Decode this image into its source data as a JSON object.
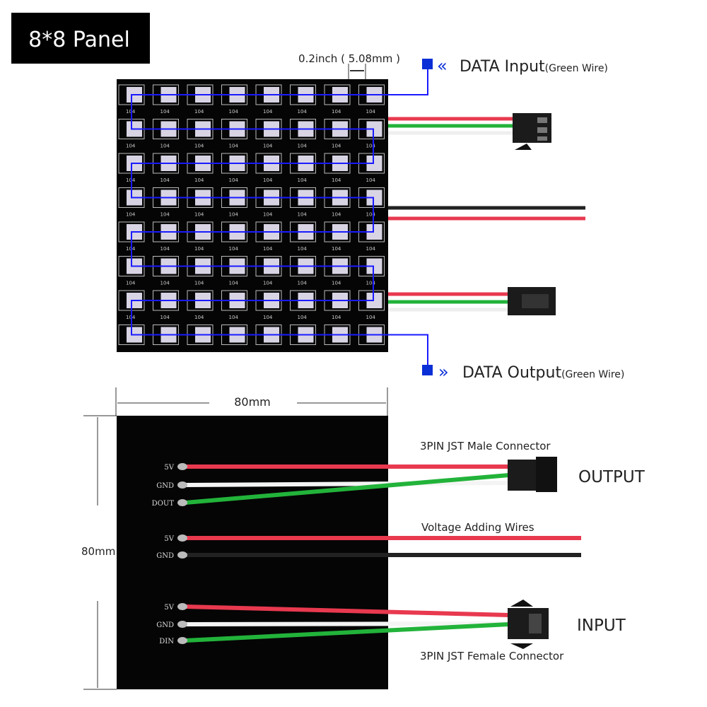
{
  "title_badge": "8*8 Panel",
  "top_view": {
    "pitch_label": "0.2inch ( 5.08mm )",
    "data_input_label": "DATA Input",
    "data_input_note": "(Green Wire)",
    "data_output_label": "DATA Output",
    "data_output_note": "(Green Wire)",
    "led_rows": 8,
    "led_cols": 8,
    "resistor_label": "104"
  },
  "bottom_view": {
    "width_label": "80mm",
    "height_label": "80mm",
    "male_connector_label": "3PIN JST Male Connector",
    "output_label": "OUTPUT",
    "voltage_label": "Voltage Adding Wires",
    "input_label": "INPUT",
    "female_connector_label": "3PIN JST Female Connector",
    "output_pins": [
      "5V",
      "GND",
      "DOUT"
    ],
    "power_pins": [
      "5V",
      "GND"
    ],
    "input_pins": [
      "5V",
      "GND",
      "DIN"
    ]
  },
  "colors": {
    "red_wire": "#e8394f",
    "green_wire": "#22b33a",
    "white_wire": "#f4f4f4",
    "black_wire": "#222222",
    "data_line": "#1a1aff",
    "accent": "#0a2fd6"
  }
}
